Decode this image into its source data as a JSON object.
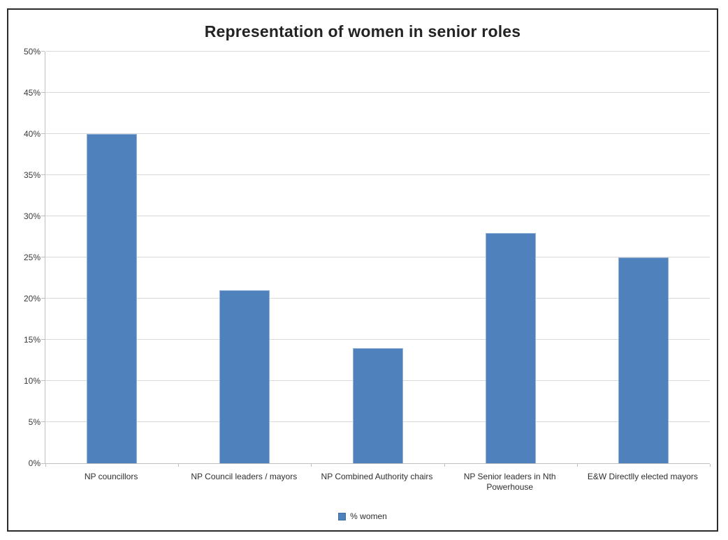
{
  "chart_data": {
    "type": "bar",
    "title": "Representation of women in senior roles",
    "categories": [
      "NP councillors",
      "NP Council leaders / mayors",
      "NP Combined Authority chairs",
      "NP Senior leaders in Nth Powerhouse",
      "E&W Directlly elected mayors"
    ],
    "values": [
      40,
      21,
      14,
      28,
      25
    ],
    "series": [
      {
        "name": "% women",
        "values": [
          40,
          21,
          14,
          28,
          25
        ]
      }
    ],
    "unit": "%",
    "xlabel": "",
    "ylabel": "",
    "ylim": [
      0,
      50
    ],
    "ytick_step": 5,
    "ytick_labels": [
      "0%",
      "5%",
      "10%",
      "15%",
      "20%",
      "25%",
      "30%",
      "35%",
      "40%",
      "45%",
      "50%"
    ],
    "grid": true,
    "legend": [
      "% women"
    ],
    "legend_position": "bottom-center",
    "bar_color": "#4f81bd",
    "bar_border_color": "#95b3d7",
    "gridline_color": "#d9d9d9",
    "axis_color": "#bfbfbf",
    "title_color": "#232323"
  }
}
